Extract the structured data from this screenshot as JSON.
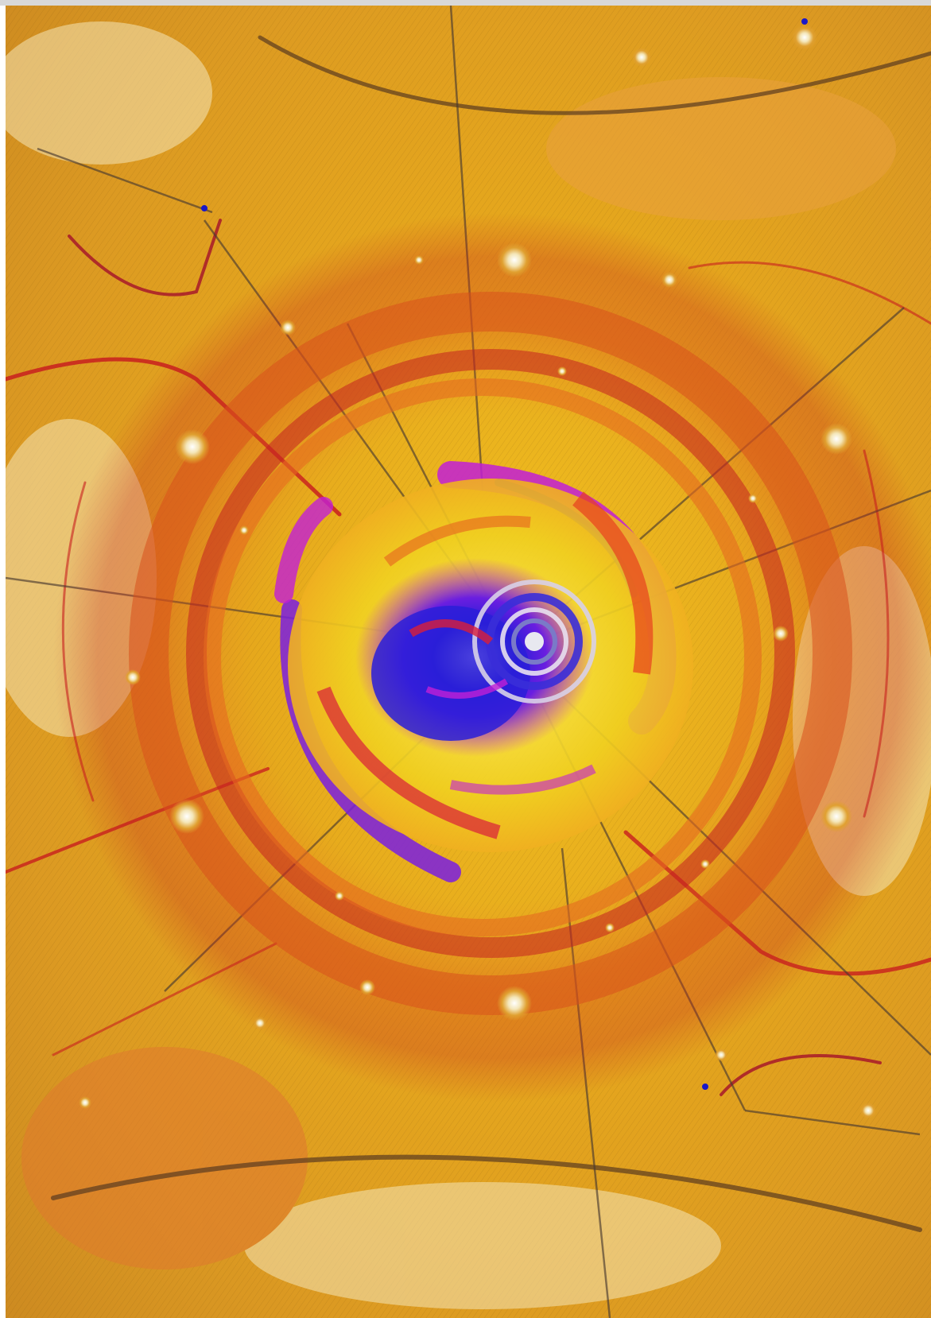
{
  "image": {
    "subject": "fractal-artwork",
    "palette": {
      "gold": "#e8b418",
      "amber": "#d9961c",
      "orange": "#e0641a",
      "red": "#c81e1e",
      "crimson": "#a4102a",
      "magenta": "#c21fd6",
      "violet": "#6a1ee0",
      "blue": "#2a1ed8",
      "cream": "#f4e6b8",
      "dark_line": "#5a3a20",
      "frame_gray": "#d8d8d8"
    },
    "spiral_center_color": "#1a18c8",
    "features": [
      "central-spiral",
      "concentric-rings",
      "radiating-filaments",
      "small-fractal-nodes"
    ]
  }
}
